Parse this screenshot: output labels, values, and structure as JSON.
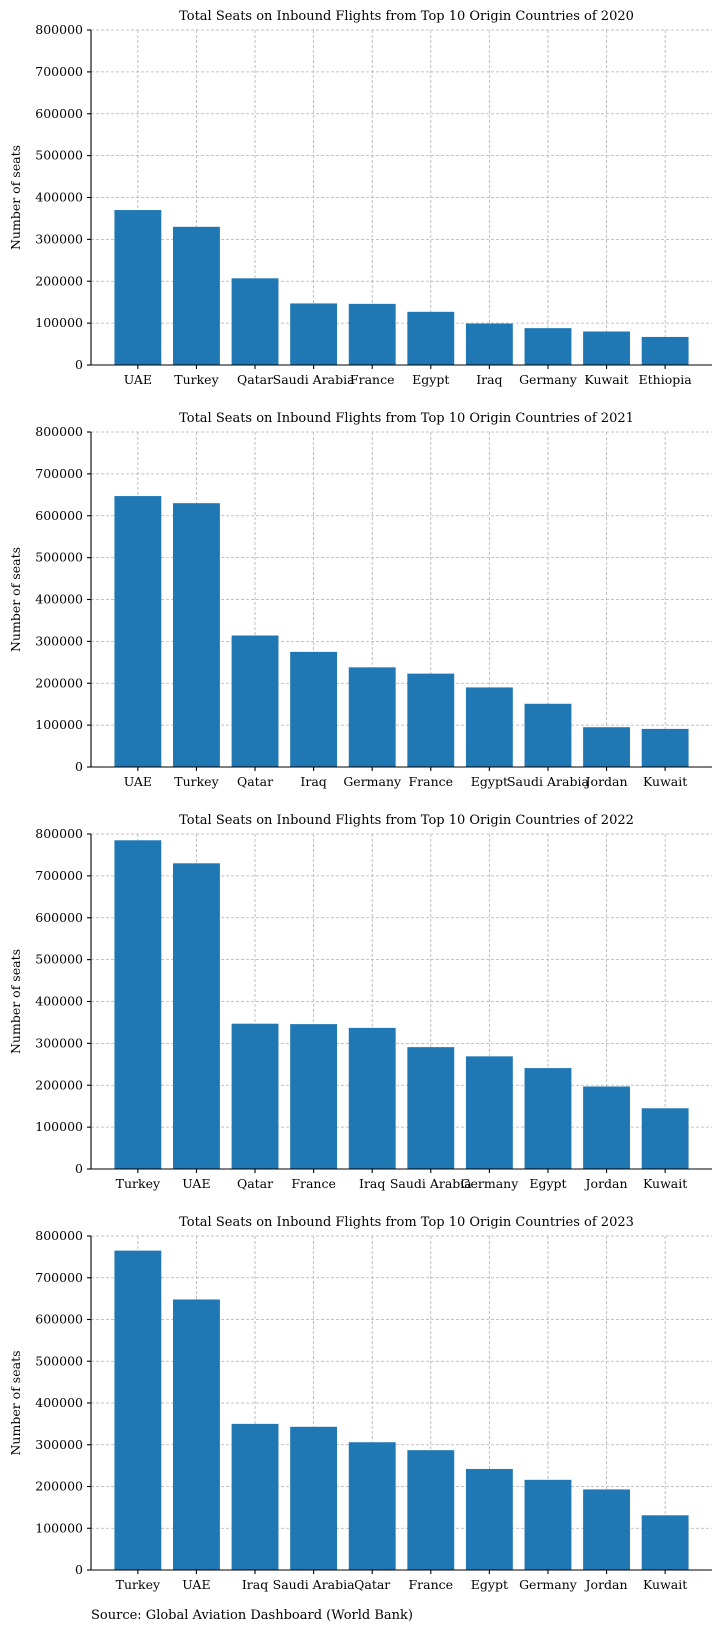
{
  "source": "Source: Global Aviation Dashboard (World Bank)",
  "chart_data": [
    {
      "type": "bar",
      "title": "Total Seats on Inbound Flights from Top 10 Origin Countries of 2020",
      "xlabel": "",
      "ylabel": "Number of seats",
      "ylim": [
        0,
        800000
      ],
      "yticks": [
        "0",
        "100000",
        "200000",
        "300000",
        "400000",
        "500000",
        "600000",
        "700000",
        "800000"
      ],
      "grid": true,
      "color": "#1f77b4",
      "categories": [
        "UAE",
        "Turkey",
        "Qatar",
        "Saudi Arabia",
        "France",
        "Egypt",
        "Iraq",
        "Germany",
        "Kuwait",
        "Ethiopia"
      ],
      "values": [
        370000,
        330000,
        207000,
        147000,
        146000,
        127000,
        99000,
        88000,
        80000,
        67000
      ]
    },
    {
      "type": "bar",
      "title": "Total Seats on Inbound Flights from Top 10 Origin Countries of 2021",
      "xlabel": "",
      "ylabel": "Number of seats",
      "ylim": [
        0,
        800000
      ],
      "yticks": [
        "0",
        "100000",
        "200000",
        "300000",
        "400000",
        "500000",
        "600000",
        "700000",
        "800000"
      ],
      "grid": true,
      "color": "#1f77b4",
      "categories": [
        "UAE",
        "Turkey",
        "Qatar",
        "Iraq",
        "Germany",
        "France",
        "Egypt",
        "Saudi Arabia",
        "Jordan",
        "Kuwait"
      ],
      "values": [
        647000,
        630000,
        314000,
        275000,
        238000,
        223000,
        190000,
        151000,
        95000,
        91000
      ]
    },
    {
      "type": "bar",
      "title": "Total Seats on Inbound Flights from Top 10 Origin Countries of 2022",
      "xlabel": "",
      "ylabel": "Number of seats",
      "ylim": [
        0,
        800000
      ],
      "yticks": [
        "0",
        "100000",
        "200000",
        "300000",
        "400000",
        "500000",
        "600000",
        "700000",
        "800000"
      ],
      "grid": true,
      "color": "#1f77b4",
      "categories": [
        "Turkey",
        "UAE",
        "Qatar",
        "France",
        "Iraq",
        "Saudi Arabia",
        "Germany",
        "Egypt",
        "Jordan",
        "Kuwait"
      ],
      "values": [
        785000,
        730000,
        347000,
        346000,
        337000,
        291000,
        269000,
        241000,
        197000,
        145000
      ]
    },
    {
      "type": "bar",
      "title": "Total Seats on Inbound Flights from Top 10 Origin Countries of 2023",
      "xlabel": "",
      "ylabel": "Number of seats",
      "ylim": [
        0,
        800000
      ],
      "yticks": [
        "0",
        "100000",
        "200000",
        "300000",
        "400000",
        "500000",
        "600000",
        "700000",
        "800000"
      ],
      "grid": true,
      "color": "#1f77b4",
      "categories": [
        "Turkey",
        "UAE",
        "Iraq",
        "Saudi Arabia",
        "Qatar",
        "France",
        "Egypt",
        "Germany",
        "Jordan",
        "Kuwait"
      ],
      "values": [
        765000,
        648000,
        350000,
        343000,
        306000,
        287000,
        242000,
        216000,
        193000,
        131000
      ]
    }
  ]
}
